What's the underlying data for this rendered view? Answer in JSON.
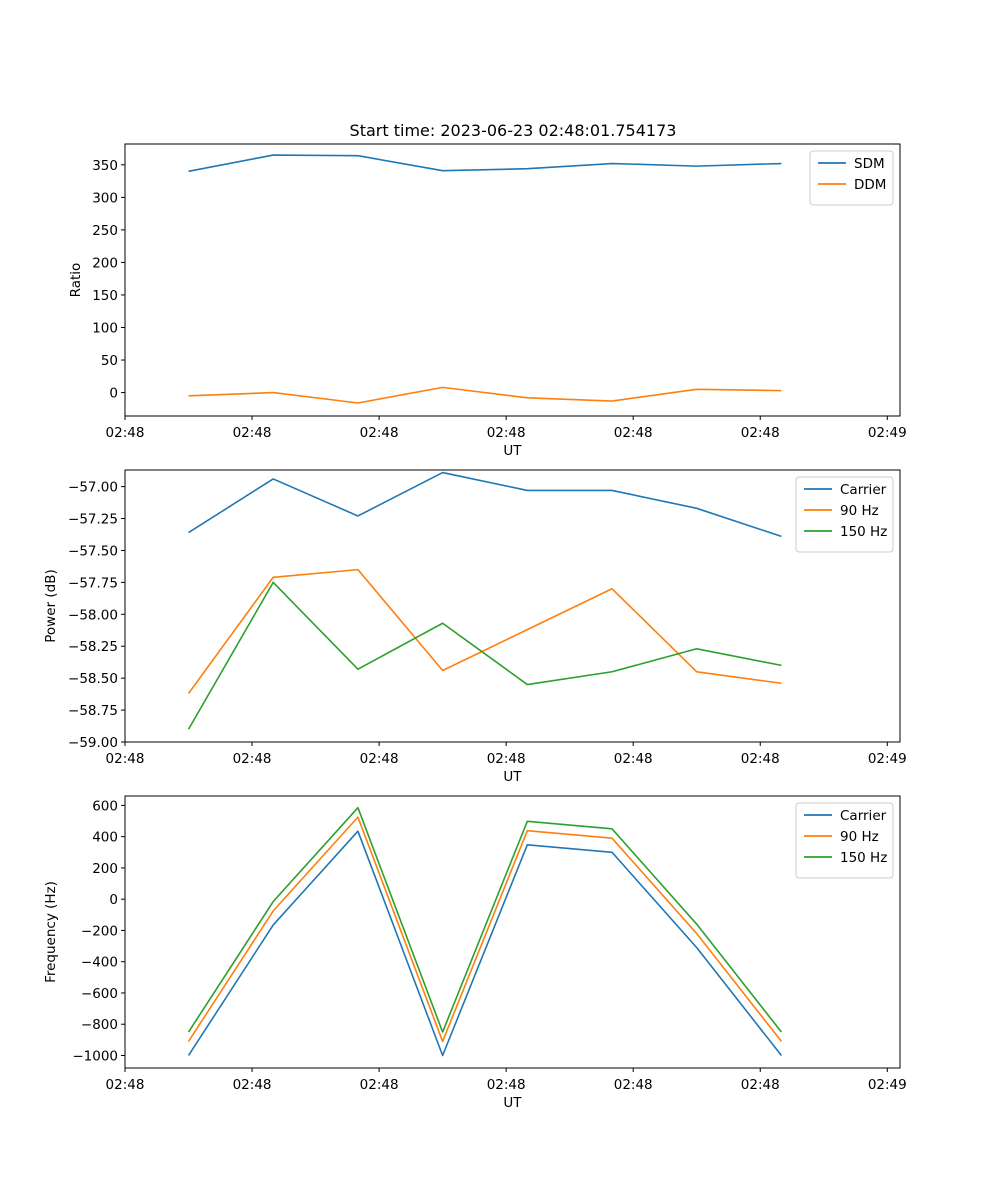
{
  "title": "Start time: 2023-06-23 02:48:01.754173",
  "colors": {
    "blue": "#1f77b4",
    "orange": "#ff7f0e",
    "green": "#2ca02c"
  },
  "chart_data": [
    {
      "type": "line",
      "ylabel": "Ratio",
      "xlabel": "UT",
      "ylim": [
        -36,
        382
      ],
      "yticks": [
        0,
        50,
        100,
        150,
        200,
        250,
        300,
        350
      ],
      "ytick_labels": [
        "0",
        "50",
        "100",
        "150",
        "200",
        "250",
        "300",
        "350"
      ],
      "xlim": [
        -0.75,
        8.4
      ],
      "xticks": [
        -0.75,
        0.75,
        2.25,
        3.75,
        5.25,
        6.75,
        8.25
      ],
      "xtick_labels": [
        "02:48",
        "02:48",
        "02:48",
        "02:48",
        "02:48",
        "02:48",
        "02:49"
      ],
      "legend": "top-right",
      "grid": false,
      "x": [
        0,
        1,
        2,
        3,
        4,
        5,
        6,
        7
      ],
      "series": [
        {
          "name": "SDM",
          "color": "#1f77b4",
          "values": [
            340,
            365,
            364,
            341,
            344,
            352,
            348,
            352
          ]
        },
        {
          "name": "DDM",
          "color": "#ff7f0e",
          "values": [
            -5,
            0,
            -16,
            8,
            -8,
            -13,
            5,
            3
          ]
        }
      ]
    },
    {
      "type": "line",
      "ylabel": "Power (dB)",
      "xlabel": "UT",
      "ylim": [
        -59.0,
        -56.87
      ],
      "yticks": [
        -59.0,
        -58.75,
        -58.5,
        -58.25,
        -58.0,
        -57.75,
        -57.5,
        -57.25,
        -57.0
      ],
      "ytick_labels": [
        "−59.00",
        "−58.75",
        "−58.50",
        "−58.25",
        "−58.00",
        "−57.75",
        "−57.50",
        "−57.25",
        "−57.00"
      ],
      "xlim": [
        -0.75,
        8.4
      ],
      "xticks": [
        -0.75,
        0.75,
        2.25,
        3.75,
        5.25,
        6.75,
        8.25
      ],
      "xtick_labels": [
        "02:48",
        "02:48",
        "02:48",
        "02:48",
        "02:48",
        "02:48",
        "02:49"
      ],
      "legend": "top-right",
      "grid": false,
      "x": [
        0,
        1,
        2,
        3,
        4,
        5,
        6,
        7
      ],
      "series": [
        {
          "name": "Carrier",
          "color": "#1f77b4",
          "values": [
            -57.36,
            -56.94,
            -57.23,
            -56.89,
            -57.03,
            -57.03,
            -57.17,
            -57.39
          ]
        },
        {
          "name": "90 Hz",
          "color": "#ff7f0e",
          "values": [
            -58.62,
            -57.71,
            -57.65,
            -58.44,
            -58.12,
            -57.8,
            -58.45,
            -58.54
          ]
        },
        {
          "name": "150 Hz",
          "color": "#2ca02c",
          "values": [
            -58.9,
            -57.75,
            -58.43,
            -58.07,
            -58.55,
            -58.45,
            -58.27,
            -58.4
          ]
        }
      ]
    },
    {
      "type": "line",
      "ylabel": "Frequency (Hz)",
      "xlabel": "UT",
      "ylim": [
        -1080,
        660
      ],
      "yticks": [
        -1000,
        -800,
        -600,
        -400,
        -200,
        0,
        200,
        400,
        600
      ],
      "ytick_labels": [
        "−1000",
        "−800",
        "−600",
        "−400",
        "−200",
        "0",
        "200",
        "400",
        "600"
      ],
      "xlim": [
        -0.75,
        8.4
      ],
      "xticks": [
        -0.75,
        0.75,
        2.25,
        3.75,
        5.25,
        6.75,
        8.25
      ],
      "xtick_labels": [
        "02:48",
        "02:48",
        "02:48",
        "02:48",
        "02:48",
        "02:48",
        "02:49"
      ],
      "legend": "top-right",
      "grid": false,
      "x": [
        0,
        1,
        2,
        3,
        4,
        5,
        6,
        7
      ],
      "series": [
        {
          "name": "Carrier",
          "color": "#1f77b4",
          "values": [
            -1000,
            -165,
            435,
            -1000,
            348,
            300,
            -310,
            -1000
          ]
        },
        {
          "name": "90 Hz",
          "color": "#ff7f0e",
          "values": [
            -910,
            -75,
            525,
            -910,
            438,
            390,
            -220,
            -910
          ]
        },
        {
          "name": "150 Hz",
          "color": "#2ca02c",
          "values": [
            -850,
            -15,
            585,
            -850,
            498,
            450,
            -160,
            -850
          ]
        }
      ]
    }
  ]
}
